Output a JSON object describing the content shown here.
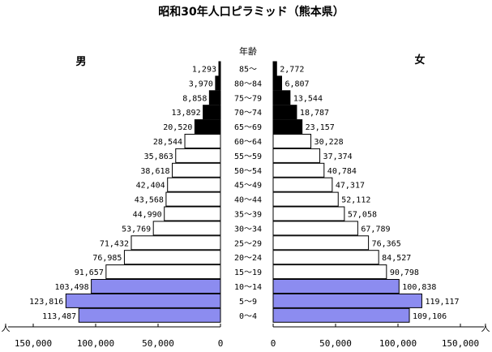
{
  "chart_data": {
    "type": "bar",
    "orientation": "horizontal-pyramid",
    "title": "昭和30年人口ピラミッド（熊本県）",
    "left_label": "男",
    "right_label": "女",
    "center_header": "年齢",
    "unit": "人",
    "xlim": [
      0,
      150000
    ],
    "left_ticks": [
      "150,000",
      "100,000",
      "50,000",
      "0"
    ],
    "right_ticks": [
      "0",
      "50,000",
      "100,000",
      "150,000"
    ],
    "tick_values": [
      0,
      50000,
      100000,
      150000
    ],
    "categories": [
      "85～",
      "80～84",
      "75～79",
      "70～74",
      "65～69",
      "60～64",
      "55～59",
      "50～54",
      "45～49",
      "40～44",
      "35～39",
      "30～34",
      "25～29",
      "20～24",
      "15～19",
      "10～14",
      "5～9",
      "0～4"
    ],
    "series": [
      {
        "name": "男",
        "values": [
          1293,
          3970,
          8858,
          13892,
          20520,
          28544,
          35863,
          38618,
          42404,
          43568,
          44990,
          53769,
          71432,
          76985,
          91657,
          103498,
          123816,
          113487
        ],
        "labels": [
          "1,293",
          "3,970",
          "8,858",
          "13,892",
          "20,520",
          "28,544",
          "35,863",
          "38,618",
          "42,404",
          "43,568",
          "44,990",
          "53,769",
          "71,432",
          "76,985",
          "91,657",
          "103,498",
          "123,816",
          "113,487"
        ]
      },
      {
        "name": "女",
        "values": [
          2772,
          6807,
          13544,
          18787,
          23157,
          30228,
          37374,
          40784,
          47317,
          52112,
          57058,
          67789,
          76365,
          84527,
          90798,
          100838,
          119117,
          109106
        ],
        "labels": [
          "2,772",
          "6,807",
          "13,544",
          "18,787",
          "23,157",
          "30,228",
          "37,374",
          "40,784",
          "47,317",
          "52,112",
          "57,058",
          "67,789",
          "76,365",
          "84,527",
          "90,798",
          "100,838",
          "119,117",
          "109,106"
        ]
      }
    ],
    "bar_colors": [
      "#000000",
      "#000000",
      "#000000",
      "#000000",
      "#000000",
      "#ffffff",
      "#ffffff",
      "#ffffff",
      "#ffffff",
      "#ffffff",
      "#ffffff",
      "#ffffff",
      "#ffffff",
      "#ffffff",
      "#ffffff",
      "#8c8cf0",
      "#8c8cf0",
      "#8c8cf0"
    ],
    "grid": false
  }
}
